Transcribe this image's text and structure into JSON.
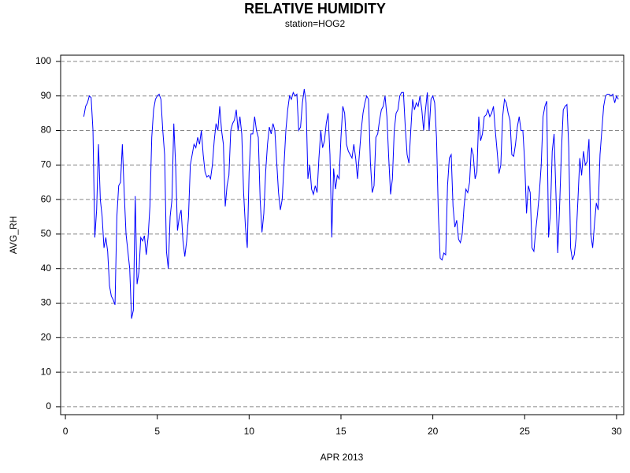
{
  "chart_data": {
    "type": "line",
    "title": "RELATIVE HUMIDITY",
    "subtitle": "station=HOG2",
    "x_label": "APR 2013",
    "y_label": "AVG_RH",
    "color": "#0000ff",
    "grid": true,
    "xlim": [
      -0.26,
      30.39
    ],
    "ylim": [
      -2.3,
      101.8
    ],
    "xticks": [
      0,
      5,
      10,
      15,
      20,
      25,
      30
    ],
    "yticks": [
      0,
      10,
      20,
      30,
      40,
      50,
      60,
      70,
      80,
      90,
      100
    ],
    "x": [
      1,
      1.1,
      1.2,
      1.3,
      1.4,
      1.5,
      1.6,
      1.7,
      1.8,
      1.9,
      2,
      2.1,
      2.2,
      2.3,
      2.4,
      2.5,
      2.6,
      2.7,
      2.8,
      2.9,
      3,
      3.1,
      3.2,
      3.3,
      3.4,
      3.5,
      3.6,
      3.7,
      3.8,
      3.9,
      4,
      4.1,
      4.2,
      4.3,
      4.4,
      4.5,
      4.6,
      4.7,
      4.8,
      4.9,
      5,
      5.1,
      5.2,
      5.3,
      5.4,
      5.5,
      5.6,
      5.7,
      5.8,
      5.9,
      6,
      6.1,
      6.2,
      6.3,
      6.4,
      6.5,
      6.6,
      6.7,
      6.8,
      6.9,
      7,
      7.1,
      7.2,
      7.3,
      7.4,
      7.5,
      7.6,
      7.7,
      7.8,
      7.9,
      8,
      8.1,
      8.2,
      8.3,
      8.4,
      8.5,
      8.6,
      8.7,
      8.8,
      8.9,
      9,
      9.1,
      9.2,
      9.3,
      9.4,
      9.5,
      9.6,
      9.7,
      9.8,
      9.9,
      10,
      10.1,
      10.2,
      10.3,
      10.4,
      10.5,
      10.6,
      10.7,
      10.8,
      10.9,
      11,
      11.1,
      11.2,
      11.3,
      11.4,
      11.5,
      11.6,
      11.7,
      11.8,
      11.9,
      12,
      12.1,
      12.2,
      12.3,
      12.4,
      12.5,
      12.6,
      12.7,
      12.8,
      12.9,
      13,
      13.1,
      13.2,
      13.3,
      13.4,
      13.5,
      13.6,
      13.7,
      13.8,
      13.9,
      14,
      14.1,
      14.2,
      14.3,
      14.4,
      14.5,
      14.6,
      14.7,
      14.8,
      14.9,
      15,
      15.1,
      15.2,
      15.3,
      15.4,
      15.5,
      15.6,
      15.7,
      15.8,
      15.9,
      16,
      16.1,
      16.2,
      16.3,
      16.4,
      16.5,
      16.6,
      16.7,
      16.8,
      16.9,
      17,
      17.1,
      17.2,
      17.3,
      17.4,
      17.5,
      17.6,
      17.7,
      17.8,
      17.9,
      18,
      18.1,
      18.2,
      18.3,
      18.4,
      18.5,
      18.6,
      18.7,
      18.8,
      18.9,
      19,
      19.1,
      19.2,
      19.3,
      19.4,
      19.5,
      19.6,
      19.7,
      19.8,
      19.9,
      20,
      20.1,
      20.2,
      20.3,
      20.4,
      20.5,
      20.6,
      20.7,
      20.8,
      20.9,
      21,
      21.1,
      21.2,
      21.3,
      21.4,
      21.5,
      21.6,
      21.7,
      21.8,
      21.9,
      22,
      22.1,
      22.2,
      22.3,
      22.4,
      22.5,
      22.6,
      22.7,
      22.8,
      22.9,
      23,
      23.1,
      23.2,
      23.3,
      23.4,
      23.5,
      23.6,
      23.7,
      23.8,
      23.9,
      24,
      24.1,
      24.2,
      24.3,
      24.4,
      24.5,
      24.6,
      24.7,
      24.8,
      24.9,
      25,
      25.1,
      25.2,
      25.3,
      25.4,
      25.5,
      25.6,
      25.7,
      25.8,
      25.9,
      26,
      26.1,
      26.2,
      26.3,
      26.4,
      26.5,
      26.6,
      26.7,
      26.8,
      26.9,
      27,
      27.1,
      27.2,
      27.3,
      27.4,
      27.5,
      27.6,
      27.7,
      27.8,
      27.9,
      28,
      28.1,
      28.2,
      28.3,
      28.4,
      28.5,
      28.6,
      28.7,
      28.8,
      28.9,
      29,
      29.1,
      29.2,
      29.3,
      29.4,
      29.5,
      29.6,
      29.7,
      29.8,
      29.9,
      30,
      30.1
    ],
    "values": [
      84,
      87,
      88,
      90,
      89.5,
      80,
      49,
      57,
      76,
      60,
      55,
      46,
      49,
      45,
      35,
      32,
      31,
      29.5,
      55,
      64,
      65,
      76,
      62,
      50,
      45,
      40,
      25.5,
      28,
      61,
      35.5,
      39,
      49,
      48,
      49.5,
      44,
      49,
      58,
      78,
      86,
      89,
      90,
      90.5,
      89,
      80,
      73,
      45,
      40,
      55,
      60,
      82,
      70,
      51,
      55,
      57,
      48,
      43.5,
      48,
      55,
      70,
      73,
      76,
      75,
      78,
      76,
      80,
      73,
      68,
      66.5,
      67,
      66,
      70,
      77,
      82,
      80,
      87,
      80,
      76,
      58,
      64,
      67,
      80,
      82,
      83,
      86,
      80,
      84,
      79,
      62,
      52,
      46,
      68,
      79,
      79,
      84,
      80,
      78,
      60,
      50.5,
      56,
      68,
      76,
      81,
      79,
      82,
      80,
      71,
      62,
      57,
      60,
      70,
      80,
      86,
      90,
      89,
      91,
      90,
      90.5,
      80,
      81,
      88,
      92,
      88,
      66,
      70,
      63,
      61.5,
      64,
      62,
      72,
      80,
      75,
      77,
      82,
      85,
      73,
      49,
      69,
      63,
      67,
      66,
      78,
      87,
      85,
      76,
      74,
      73,
      72,
      76,
      72,
      66,
      73,
      80,
      85,
      88,
      90,
      89,
      71,
      62,
      64,
      78,
      79,
      83,
      86,
      87,
      90,
      84,
      72,
      61.5,
      66,
      80,
      85,
      86,
      90,
      91,
      91,
      81,
      73,
      70.5,
      80,
      89,
      86,
      88,
      87,
      90,
      86,
      80,
      86,
      91,
      80,
      89,
      90,
      88,
      78,
      56,
      43,
      42.5,
      44.5,
      44,
      64,
      72,
      73,
      58,
      52,
      54,
      48.5,
      47.5,
      50,
      58,
      63,
      62,
      65,
      75,
      73,
      66,
      68,
      84,
      77,
      79,
      84,
      84.5,
      86,
      84,
      85,
      87,
      80,
      74,
      67.5,
      70,
      84,
      89,
      88,
      85,
      83,
      73,
      72.5,
      76,
      81,
      84,
      80,
      80,
      71,
      56,
      64,
      62,
      46,
      45,
      51,
      56,
      62,
      70,
      84,
      87,
      88.5,
      49,
      56,
      74,
      79,
      62,
      44.5,
      58,
      74,
      86,
      87,
      87.5,
      75,
      46,
      42.5,
      44,
      49,
      60,
      72,
      67,
      74,
      70,
      71,
      77.5,
      50,
      46,
      53,
      59,
      57,
      73,
      80,
      87,
      90,
      90.5,
      90.5,
      90,
      90.5,
      88,
      90,
      89
    ]
  }
}
